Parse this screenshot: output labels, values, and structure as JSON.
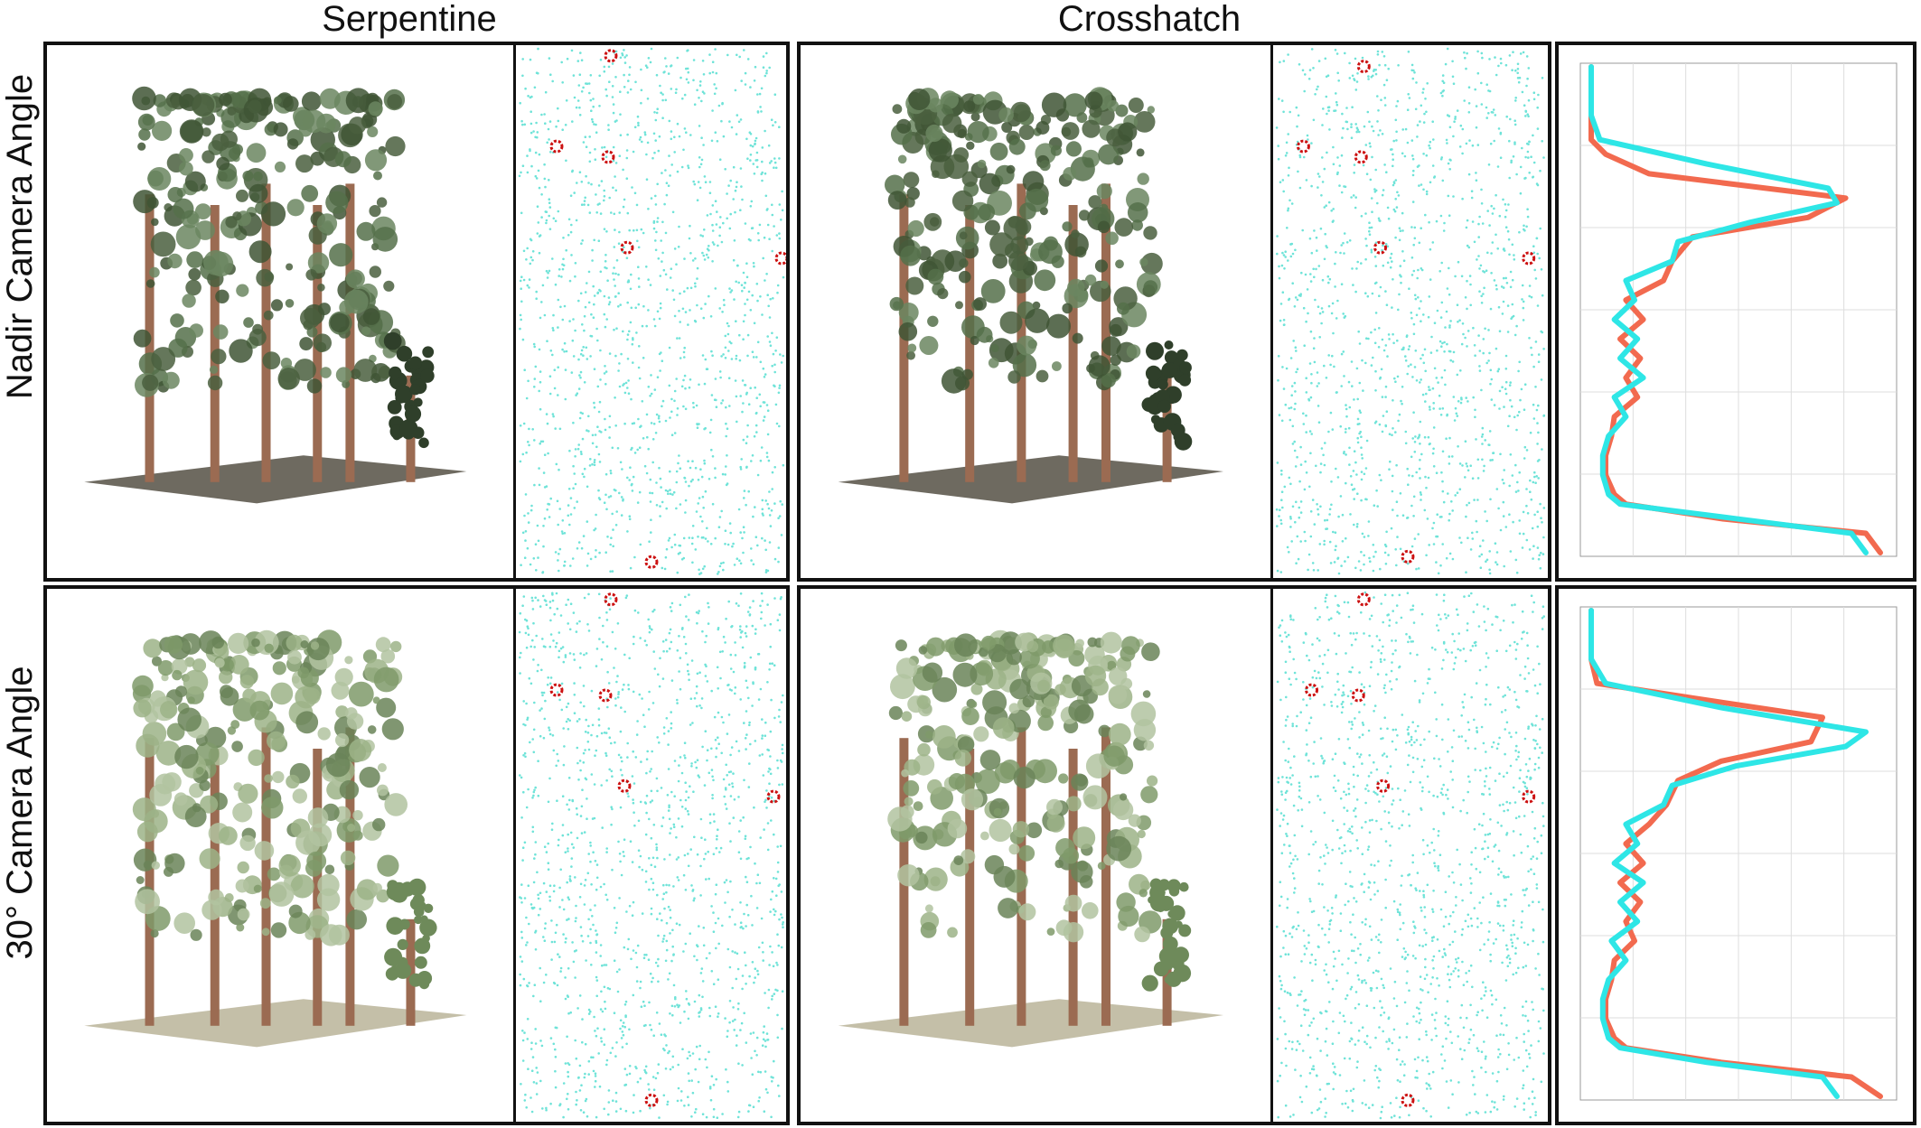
{
  "columns": [
    "Serpentine",
    "Crosshatch"
  ],
  "rows": [
    "Nadir Camera Angle",
    "30° Camera Angle"
  ],
  "colors": {
    "cyan": "#2ee6e6",
    "orange": "#f26a4f",
    "red_stem": "#cc1111",
    "dot_cyan": "#6fe3d8",
    "frame": "#111111",
    "grid": "#dddddd"
  },
  "panels": [
    {
      "row": 0,
      "method": "Serpentine",
      "stems": [
        [
          0.35,
          0.02
        ],
        [
          0.15,
          0.19
        ],
        [
          0.34,
          0.21
        ],
        [
          0.41,
          0.38
        ],
        [
          0.98,
          0.4
        ],
        [
          0.5,
          0.97
        ]
      ]
    },
    {
      "row": 0,
      "method": "Crosshatch",
      "stems": [
        [
          0.33,
          0.04
        ],
        [
          0.11,
          0.19
        ],
        [
          0.32,
          0.21
        ],
        [
          0.39,
          0.38
        ],
        [
          0.93,
          0.4
        ],
        [
          0.49,
          0.96
        ]
      ]
    },
    {
      "row": 1,
      "method": "Serpentine",
      "stems": [
        [
          0.35,
          0.02
        ],
        [
          0.15,
          0.19
        ],
        [
          0.33,
          0.2
        ],
        [
          0.4,
          0.37
        ],
        [
          0.95,
          0.39
        ],
        [
          0.5,
          0.96
        ]
      ]
    },
    {
      "row": 1,
      "method": "Crosshatch",
      "stems": [
        [
          0.33,
          0.02
        ],
        [
          0.14,
          0.19
        ],
        [
          0.31,
          0.2
        ],
        [
          0.4,
          0.37
        ],
        [
          0.93,
          0.39
        ],
        [
          0.49,
          0.96
        ]
      ]
    }
  ],
  "chart_data": [
    {
      "type": "line",
      "row": "Nadir Camera Angle",
      "series": [
        {
          "color": "#2ee6e6",
          "y": [
            0.0,
            0.05,
            0.1,
            0.15,
            0.2,
            0.25,
            0.28,
            0.32,
            0.36,
            0.4,
            0.44,
            0.48,
            0.52,
            0.56,
            0.6,
            0.64,
            0.68,
            0.72,
            0.76,
            0.8,
            0.84,
            0.88,
            0.9,
            0.93,
            0.96,
            1.0
          ],
          "x": [
            0.0,
            0.0,
            0.0,
            0.03,
            0.4,
            0.82,
            0.85,
            0.55,
            0.3,
            0.28,
            0.12,
            0.15,
            0.08,
            0.16,
            0.1,
            0.18,
            0.08,
            0.12,
            0.06,
            0.04,
            0.04,
            0.06,
            0.1,
            0.5,
            0.9,
            0.95
          ]
        },
        {
          "color": "#f26a4f",
          "y": [
            0.0,
            0.05,
            0.1,
            0.15,
            0.18,
            0.22,
            0.27,
            0.31,
            0.35,
            0.4,
            0.44,
            0.48,
            0.52,
            0.56,
            0.6,
            0.64,
            0.68,
            0.72,
            0.76,
            0.8,
            0.84,
            0.88,
            0.9,
            0.93,
            0.96,
            1.0
          ],
          "x": [
            0.0,
            0.0,
            0.0,
            0.0,
            0.05,
            0.2,
            0.88,
            0.75,
            0.35,
            0.28,
            0.25,
            0.12,
            0.18,
            0.1,
            0.17,
            0.12,
            0.16,
            0.08,
            0.07,
            0.05,
            0.05,
            0.08,
            0.12,
            0.45,
            0.95,
            1.0
          ]
        }
      ]
    },
    {
      "type": "line",
      "row": "30° Camera Angle",
      "series": [
        {
          "color": "#2ee6e6",
          "y": [
            0.0,
            0.05,
            0.1,
            0.15,
            0.2,
            0.25,
            0.28,
            0.32,
            0.36,
            0.4,
            0.44,
            0.48,
            0.52,
            0.56,
            0.6,
            0.64,
            0.68,
            0.72,
            0.76,
            0.8,
            0.84,
            0.88,
            0.9,
            0.93,
            0.96,
            1.0
          ],
          "x": [
            0.0,
            0.0,
            0.0,
            0.05,
            0.45,
            0.95,
            0.88,
            0.5,
            0.28,
            0.25,
            0.12,
            0.16,
            0.08,
            0.18,
            0.1,
            0.16,
            0.07,
            0.12,
            0.06,
            0.04,
            0.04,
            0.06,
            0.1,
            0.4,
            0.8,
            0.85
          ]
        },
        {
          "color": "#f26a4f",
          "y": [
            0.0,
            0.05,
            0.1,
            0.15,
            0.18,
            0.22,
            0.27,
            0.31,
            0.35,
            0.4,
            0.44,
            0.48,
            0.52,
            0.56,
            0.6,
            0.64,
            0.68,
            0.72,
            0.76,
            0.8,
            0.84,
            0.88,
            0.9,
            0.93,
            0.96,
            1.0
          ],
          "x": [
            0.0,
            0.0,
            0.0,
            0.02,
            0.35,
            0.8,
            0.76,
            0.45,
            0.3,
            0.26,
            0.2,
            0.12,
            0.18,
            0.1,
            0.17,
            0.12,
            0.15,
            0.08,
            0.07,
            0.05,
            0.05,
            0.08,
            0.12,
            0.45,
            0.9,
            1.0
          ]
        }
      ]
    }
  ]
}
